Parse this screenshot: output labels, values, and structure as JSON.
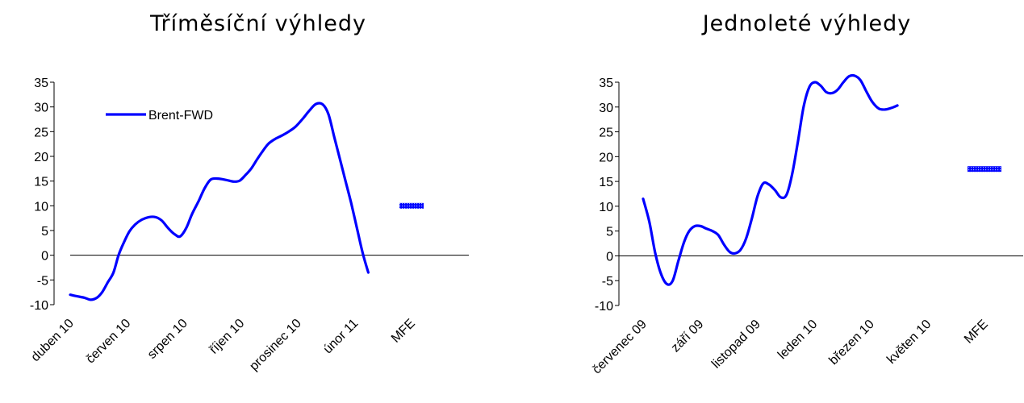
{
  "charts": [
    {
      "title": "Tříměsíční výhledy"
    },
    {
      "title": "Jednoleté výhledy"
    }
  ],
  "colors": {
    "line": "#0000ff",
    "mfe_marker": "#0000ff",
    "axis": "#000000"
  },
  "chart_data": [
    {
      "type": "line",
      "title": "Tříměsíční výhledy",
      "xlabel": "",
      "ylabel": "",
      "ylim": [
        -10,
        35
      ],
      "y_ticks": [
        "-10",
        "-5",
        "0",
        "5",
        "10",
        "15",
        "20",
        "25",
        "30",
        "35"
      ],
      "x_tick_labels": [
        "duben 10",
        "červen 10",
        "srpen 10",
        "říjen 10",
        "prosinec 10",
        "únor 11",
        "MFE"
      ],
      "legend": {
        "position": "top-left",
        "entries": [
          "Brent-FWD"
        ]
      },
      "grid": false,
      "series": [
        {
          "name": "Brent-FWD",
          "values": [
            -8,
            -8.3,
            -8.6,
            -9,
            -8.6,
            -7.5,
            -5.5,
            -3.5,
            0,
            2.5,
            4.8,
            6.2,
            7.2,
            7.7,
            7.7,
            7.0,
            5.5,
            4.3,
            3.8,
            5.5,
            8.3,
            11,
            13.5,
            15.3,
            15.5,
            15.2,
            14.9,
            15.1,
            16.2,
            17.5,
            19.3,
            21,
            22.5,
            23.5,
            24.2,
            25,
            26,
            27.5,
            29.2,
            30.6,
            30.5,
            28.5,
            24,
            19.5,
            15,
            10.5,
            5.5,
            0.5,
            -3.5
          ],
          "x_positions": [
            0.0,
            0.12,
            0.25,
            0.36,
            0.47,
            0.56,
            0.66,
            0.76,
            0.85,
            0.94,
            1.04,
            1.14,
            1.26,
            1.38,
            1.5,
            1.61,
            1.72,
            1.83,
            1.93,
            2.04,
            2.14,
            2.26,
            2.36,
            2.47,
            2.6,
            2.75,
            2.88,
            2.98,
            3.08,
            3.18,
            3.28,
            3.38,
            3.48,
            3.6,
            3.72,
            3.84,
            3.96,
            4.08,
            4.2,
            4.32,
            4.44,
            4.54,
            4.64,
            4.74,
            4.84,
            4.94,
            5.04,
            5.14,
            5.24
          ]
        }
      ],
      "mfe_value": 10
    },
    {
      "type": "line",
      "title": "Jednoleté výhledy",
      "xlabel": "",
      "ylabel": "",
      "ylim": [
        -10,
        35
      ],
      "y_ticks": [
        "-10",
        "-5",
        "0",
        "5",
        "10",
        "15",
        "20",
        "25",
        "30",
        "35"
      ],
      "x_tick_labels": [
        "červenec 09",
        "září 09",
        "listopad 09",
        "leden 10",
        "březen 10",
        "květen 10",
        "MFE"
      ],
      "grid": false,
      "series": [
        {
          "values": [
            11.5,
            6.8,
            0.7,
            -3.5,
            -5.7,
            -5,
            -1,
            2.8,
            5,
            6,
            6,
            5.5,
            5,
            4.2,
            2.3,
            0.8,
            0.5,
            1.2,
            3.5,
            7.5,
            12,
            14.6,
            14.4,
            13.2,
            11.8,
            12.3,
            16.5,
            23,
            30,
            34,
            35,
            34.3,
            33,
            32.8,
            33.5,
            35,
            36.2,
            36.3,
            35.4,
            33,
            31,
            29.7,
            29.5,
            29.8,
            30.3
          ],
          "x_positions": [
            0.0,
            0.11,
            0.21,
            0.31,
            0.42,
            0.52,
            0.62,
            0.72,
            0.81,
            0.91,
            1.01,
            1.11,
            1.22,
            1.32,
            1.42,
            1.52,
            1.61,
            1.71,
            1.81,
            1.91,
            2.01,
            2.11,
            2.21,
            2.32,
            2.42,
            2.52,
            2.62,
            2.72,
            2.82,
            2.92,
            3.02,
            3.12,
            3.22,
            3.32,
            3.42,
            3.52,
            3.62,
            3.72,
            3.82,
            3.93,
            4.03,
            4.14,
            4.25,
            4.36,
            4.47
          ]
        }
      ],
      "mfe_value": 17.5
    }
  ]
}
